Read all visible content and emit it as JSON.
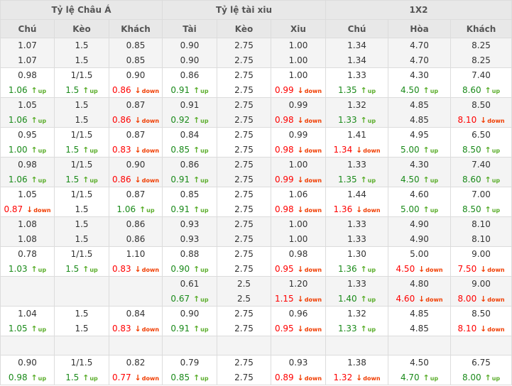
{
  "header": {
    "groups": [
      "Tỷ lệ Châu Á",
      "Tỷ lệ tài xiu",
      "1X2"
    ],
    "columns": [
      "Chú",
      "Kèo",
      "Khách",
      "Tài",
      "Kèo",
      "Xiu",
      "Chú",
      "Hòa",
      "Khách"
    ]
  },
  "colors": {
    "up_text": "#1a8a1a",
    "up_arrow": "#5aad2a",
    "down_text": "#ff0000",
    "down_arrow": "#f03c00"
  },
  "icons": {
    "up": "arrow-up-icon",
    "down": "arrow-down-icon"
  },
  "rows": [
    [
      [
        "1.07",
        "1.5",
        "0.85",
        "0.90",
        "2.75",
        "1.00",
        "1.34",
        "4.70",
        "8.25"
      ],
      [
        "1.07",
        "1.5",
        "0.85",
        "0.90",
        "2.75",
        "1.00",
        "1.34",
        "4.70",
        "8.25"
      ]
    ],
    [
      [
        "0.98",
        "1/1.5",
        "0.90",
        "0.86",
        "2.75",
        "1.00",
        "1.33",
        "4.30",
        "7.40"
      ],
      [
        "1.06 up",
        "1.5 up",
        "0.86 down",
        "0.91 up",
        "2.75",
        "0.99 down",
        "1.35 up",
        "4.50 up",
        "8.60 up"
      ]
    ],
    [
      [
        "1.05",
        "1.5",
        "0.87",
        "0.91",
        "2.75",
        "0.99",
        "1.32",
        "4.85",
        "8.50"
      ],
      [
        "1.06 up",
        "1.5",
        "0.86 down",
        "0.92 up",
        "2.75",
        "0.98 down",
        "1.33 up",
        "4.85",
        "8.10 down"
      ]
    ],
    [
      [
        "0.95",
        "1/1.5",
        "0.87",
        "0.84",
        "2.75",
        "0.99",
        "1.41",
        "4.95",
        "6.50"
      ],
      [
        "1.00 up",
        "1.5 up",
        "0.83 down",
        "0.85 up",
        "2.75",
        "0.98 down",
        "1.34 down",
        "5.00 up",
        "8.50 up"
      ]
    ],
    [
      [
        "0.98",
        "1/1.5",
        "0.90",
        "0.86",
        "2.75",
        "1.00",
        "1.33",
        "4.30",
        "7.40"
      ],
      [
        "1.06 up",
        "1.5 up",
        "0.86 down",
        "0.91 up",
        "2.75",
        "0.99 down",
        "1.35 up",
        "4.50 up",
        "8.60 up"
      ]
    ],
    [
      [
        "1.05",
        "1/1.5",
        "0.87",
        "0.85",
        "2.75",
        "1.06",
        "1.44",
        "4.60",
        "7.00"
      ],
      [
        "0.87 down",
        "1.5",
        "1.06 up",
        "0.91 up",
        "2.75",
        "0.98 down",
        "1.36 down",
        "5.00 up",
        "8.50 up"
      ]
    ],
    [
      [
        "1.08",
        "1.5",
        "0.86",
        "0.93",
        "2.75",
        "1.00",
        "1.33",
        "4.90",
        "8.10"
      ],
      [
        "1.08",
        "1.5",
        "0.86",
        "0.93",
        "2.75",
        "1.00",
        "1.33",
        "4.90",
        "8.10"
      ]
    ],
    [
      [
        "0.78",
        "1/1.5",
        "1.10",
        "0.88",
        "2.75",
        "0.98",
        "1.30",
        "5.00",
        "9.00"
      ],
      [
        "1.03 up",
        "1.5 up",
        "0.83 down",
        "0.90 up",
        "2.75",
        "0.95 down",
        "1.36 up",
        "4.50 down",
        "7.50 down"
      ]
    ],
    [
      [
        "",
        "",
        "",
        "0.61",
        "2.5",
        "1.20",
        "1.33",
        "4.80",
        "9.00"
      ],
      [
        "",
        "",
        "",
        "0.67 up",
        "2.5",
        "1.15 down",
        "1.40 up",
        "4.60 down",
        "8.00 down"
      ]
    ],
    [
      [
        "1.04",
        "1.5",
        "0.84",
        "0.90",
        "2.75",
        "0.96",
        "1.32",
        "4.85",
        "8.50"
      ],
      [
        "1.05 up",
        "1.5",
        "0.83 down",
        "0.91 up",
        "2.75",
        "0.95 down",
        "1.33 up",
        "4.85",
        "8.10 down"
      ]
    ],
    [],
    [
      [
        "0.90",
        "1/1.5",
        "0.82",
        "0.79",
        "2.75",
        "0.93",
        "1.38",
        "4.50",
        "6.75"
      ],
      [
        "0.98 up",
        "1.5 up",
        "0.77 down",
        "0.85 up",
        "2.75",
        "0.89 down",
        "1.32 down",
        "4.70 up",
        "8.00 up"
      ]
    ]
  ]
}
